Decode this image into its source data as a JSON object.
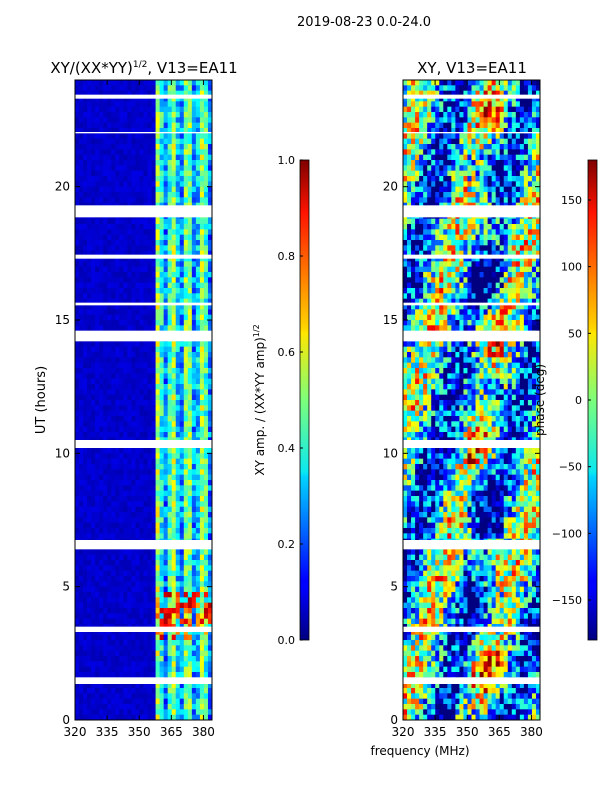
{
  "suptitle": "2019-08-23 0.0-24.0",
  "shared_xlabel": "frequency (MHz)",
  "chart_data": [
    {
      "type": "heatmap",
      "title_main": "XY/(XX*YY)",
      "title_sup": "1/2",
      "title_rest": ", V13=EA11",
      "ylabel": "UT (hours)",
      "xlim": [
        320,
        384
      ],
      "ylim": [
        0,
        24
      ],
      "xticks": [
        "320",
        "335",
        "350",
        "365",
        "380"
      ],
      "xtick_values": [
        320,
        335,
        350,
        365,
        380
      ],
      "yticks": [
        "0",
        "5",
        "10",
        "15",
        "20"
      ],
      "ytick_values": [
        0,
        5,
        10,
        15,
        20
      ],
      "colormap": "jet",
      "colorbar": {
        "label_main": "XY amp. / (XX*YY amp)",
        "label_sup": "1/2",
        "range": [
          0.0,
          1.0
        ],
        "ticks": [
          "0.0",
          "0.2",
          "0.4",
          "0.6",
          "0.8",
          "1.0"
        ],
        "tick_values": [
          0.0,
          0.2,
          0.4,
          0.6,
          0.8,
          1.0
        ]
      },
      "gaps_hours": [
        [
          1.35,
          1.6
        ],
        [
          3.3,
          3.5
        ],
        [
          6.4,
          6.75
        ],
        [
          10.2,
          10.5
        ],
        [
          14.2,
          14.6
        ],
        [
          15.55,
          15.65
        ],
        [
          17.3,
          17.45
        ],
        [
          18.85,
          19.3
        ],
        [
          22.0,
          22.05
        ],
        [
          23.3,
          23.45
        ]
      ],
      "active_band_mhz": [
        357,
        384
      ],
      "baseline_value": 0.05
    },
    {
      "type": "heatmap",
      "title_main": "XY, V13=EA11",
      "ylabel": "",
      "xlim": [
        320,
        384
      ],
      "ylim": [
        0,
        24
      ],
      "xticks": [
        "320",
        "335",
        "350",
        "365",
        "380"
      ],
      "xtick_values": [
        320,
        335,
        350,
        365,
        380
      ],
      "yticks": [
        "0",
        "5",
        "10",
        "15",
        "20"
      ],
      "ytick_values": [
        0,
        5,
        10,
        15,
        20
      ],
      "colormap": "jet",
      "colorbar": {
        "label_main": "phase (deg)",
        "range": [
          -180,
          180
        ],
        "ticks": [
          "−150",
          "−100",
          "−50",
          "0",
          "50",
          "100",
          "150"
        ],
        "tick_values": [
          -150,
          -100,
          -50,
          0,
          50,
          100,
          150
        ]
      },
      "gaps_hours": [
        [
          1.35,
          1.6
        ],
        [
          3.3,
          3.5
        ],
        [
          6.4,
          6.75
        ],
        [
          10.2,
          10.5
        ],
        [
          14.2,
          14.6
        ],
        [
          15.55,
          15.65
        ],
        [
          17.3,
          17.45
        ],
        [
          18.85,
          19.3
        ],
        [
          22.0,
          22.05
        ],
        [
          23.3,
          23.45
        ]
      ]
    }
  ]
}
